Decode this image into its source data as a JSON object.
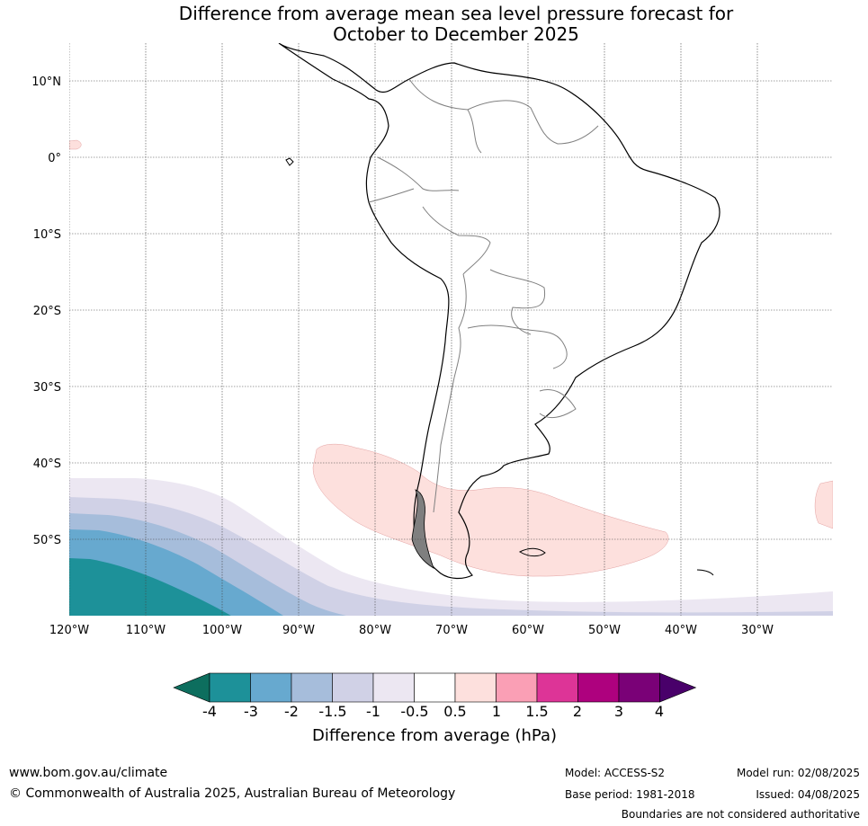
{
  "title_line1": "Difference from average mean sea level pressure forecast for",
  "title_line2": "October to December 2025",
  "lat_labels": [
    "10°N",
    "0°",
    "10°S",
    "20°S",
    "30°S",
    "40°S",
    "50°S"
  ],
  "lon_labels": [
    "120°W",
    "110°W",
    "100°W",
    "90°W",
    "80°W",
    "70°W",
    "60°W",
    "50°W",
    "40°W",
    "30°W"
  ],
  "colorbar": {
    "title": "Difference from average (hPa)",
    "ticks": [
      "-4",
      "-3",
      "-2",
      "-1.5",
      "-1",
      "-0.5",
      "0.5",
      "1",
      "1.5",
      "2",
      "3",
      "4"
    ],
    "colors": [
      "#0d6e5e",
      "#1d9199",
      "#67a9cf",
      "#a6bddb",
      "#d0d1e6",
      "#ece7f2",
      "#ffffff",
      "#fde0dd",
      "#fa9fb5",
      "#dd3497",
      "#ae017e",
      "#7a0177",
      "#49006a"
    ]
  },
  "footer": {
    "website": "www.bom.gov.au/climate",
    "copyright": "© Commonwealth of Australia 2025, Australian Bureau of Meteorology",
    "model": "Model: ACCESS-S2",
    "model_run": "Model run: 02/08/2025",
    "base_period": "Base period: 1981-2018",
    "issued": "Issued: 04/08/2025",
    "disclaimer": "Boundaries are not considered authoritative"
  }
}
